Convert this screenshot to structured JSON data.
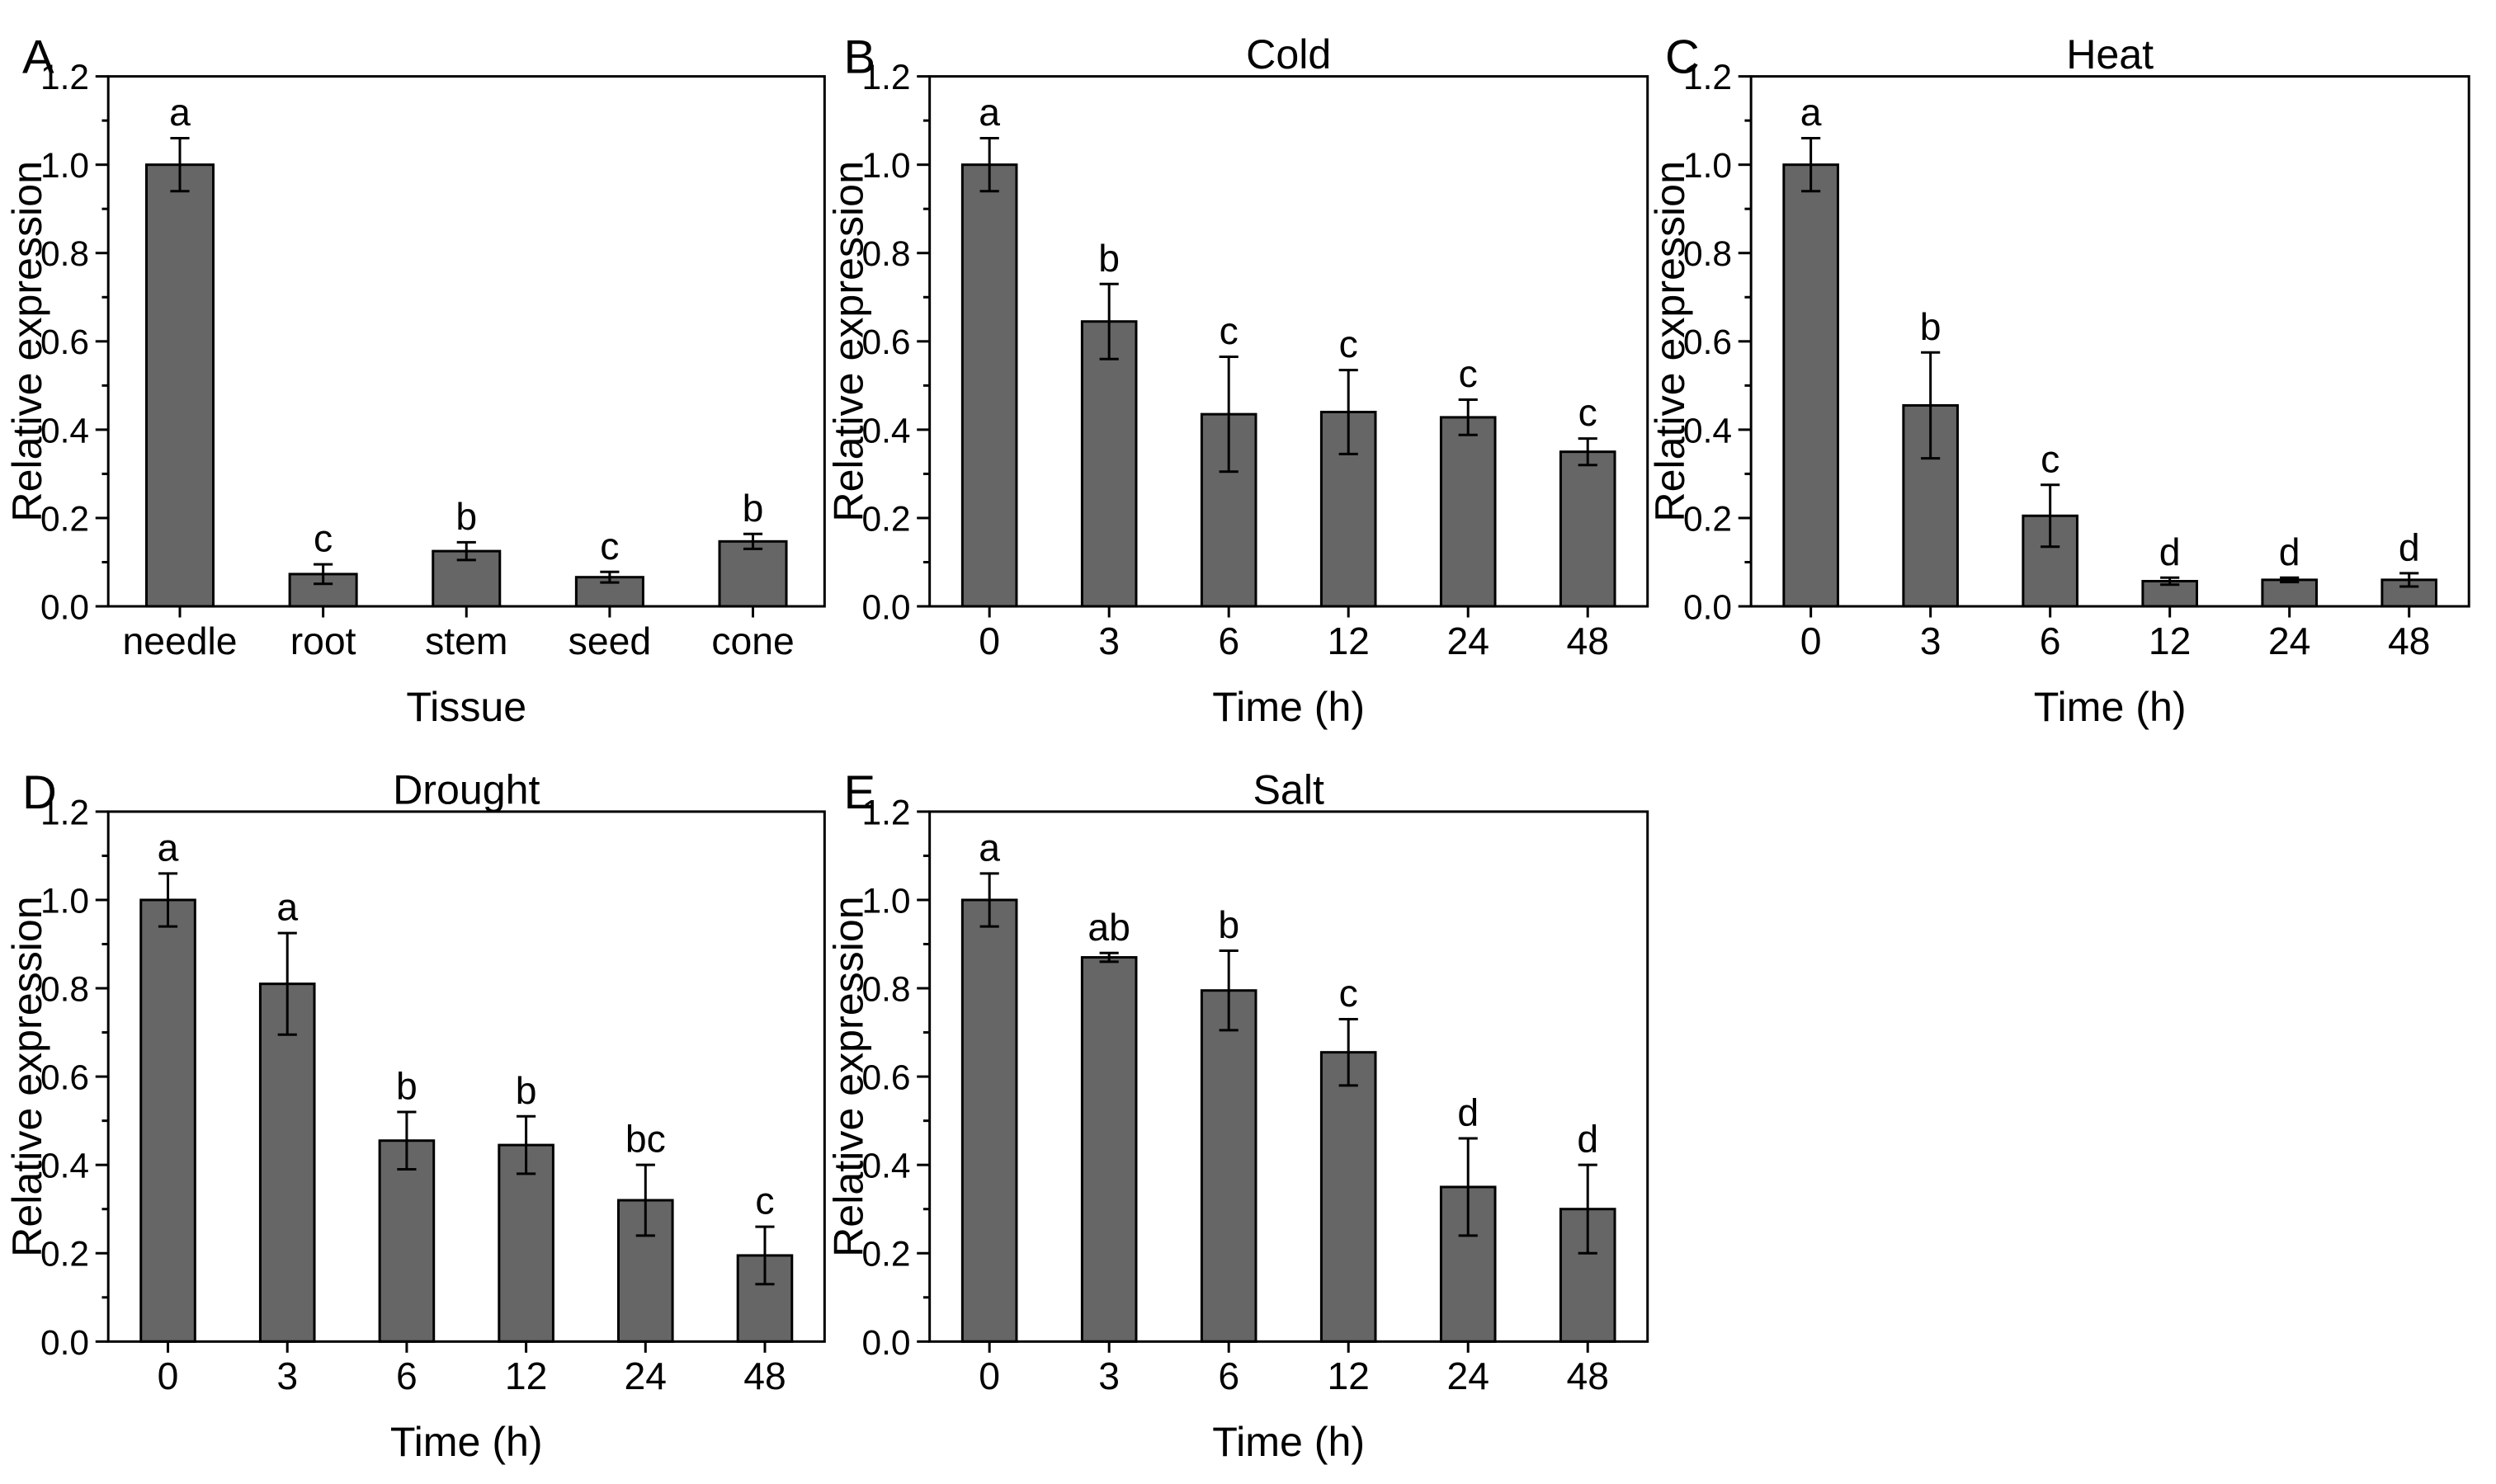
{
  "colors": {
    "bar_fill": "#666666",
    "axis": "#000000",
    "background": "#ffffff"
  },
  "chart_data": [
    {
      "panel": "A",
      "type": "bar",
      "title": "",
      "xlabel": "Tissue",
      "ylabel": "Relative expression",
      "ylim": [
        0,
        1.2
      ],
      "yticks": [
        0.0,
        0.2,
        0.4,
        0.6,
        0.8,
        1.0,
        1.2
      ],
      "ytick_labels": [
        "0.0",
        "0.2",
        "0.4",
        "0.6",
        "0.8",
        "1.0",
        "1.2"
      ],
      "categories": [
        "needle",
        "root",
        "stem",
        "seed",
        "cone"
      ],
      "values": [
        1.0,
        0.073,
        0.125,
        0.066,
        0.147
      ],
      "errors": [
        0.06,
        0.022,
        0.02,
        0.012,
        0.017
      ],
      "labels": [
        "a",
        "c",
        "b",
        "c",
        "b"
      ]
    },
    {
      "panel": "B",
      "type": "bar",
      "title": "Cold",
      "xlabel": "Time (h)",
      "ylabel": "Relative expression",
      "ylim": [
        0,
        1.2
      ],
      "yticks": [
        0.0,
        0.2,
        0.4,
        0.6,
        0.8,
        1.0,
        1.2
      ],
      "ytick_labels": [
        "0.0",
        "0.2",
        "0.4",
        "0.6",
        "0.8",
        "1.0",
        "1.2"
      ],
      "categories": [
        "0",
        "3",
        "6",
        "12",
        "24",
        "48"
      ],
      "values": [
        1.0,
        0.645,
        0.435,
        0.44,
        0.428,
        0.35
      ],
      "errors": [
        0.06,
        0.085,
        0.13,
        0.095,
        0.04,
        0.03
      ],
      "labels": [
        "a",
        "b",
        "c",
        "c",
        "c",
        "c"
      ]
    },
    {
      "panel": "C",
      "type": "bar",
      "title": "Heat",
      "xlabel": "Time (h)",
      "ylabel": "Relative expression",
      "ylim": [
        0,
        1.2
      ],
      "yticks": [
        0.0,
        0.2,
        0.4,
        0.6,
        0.8,
        1.0,
        1.2
      ],
      "ytick_labels": [
        "0.0",
        "0.2",
        "0.4",
        "0.6",
        "0.8",
        "1.0",
        "1.2"
      ],
      "categories": [
        "0",
        "3",
        "6",
        "12",
        "24",
        "48"
      ],
      "values": [
        1.0,
        0.455,
        0.205,
        0.057,
        0.06,
        0.06
      ],
      "errors": [
        0.06,
        0.12,
        0.07,
        0.008,
        0.005,
        0.015
      ],
      "labels": [
        "a",
        "b",
        "c",
        "d",
        "d",
        "d"
      ]
    },
    {
      "panel": "D",
      "type": "bar",
      "title": "Drought",
      "xlabel": "Time (h)",
      "ylabel": "Relative expression",
      "ylim": [
        0,
        1.2
      ],
      "yticks": [
        0.0,
        0.2,
        0.4,
        0.6,
        0.8,
        1.0,
        1.2
      ],
      "ytick_labels": [
        "0.0",
        "0.2",
        "0.4",
        "0.6",
        "0.8",
        "1.0",
        "1.2"
      ],
      "categories": [
        "0",
        "3",
        "6",
        "12",
        "24",
        "48"
      ],
      "values": [
        1.0,
        0.81,
        0.455,
        0.445,
        0.32,
        0.195
      ],
      "errors": [
        0.06,
        0.115,
        0.065,
        0.065,
        0.08,
        0.065
      ],
      "labels": [
        "a",
        "a",
        "b",
        "b",
        "bc",
        "c"
      ]
    },
    {
      "panel": "E",
      "type": "bar",
      "title": "Salt",
      "xlabel": "Time (h)",
      "ylabel": "Relative expression",
      "ylim": [
        0,
        1.2
      ],
      "yticks": [
        0.0,
        0.2,
        0.4,
        0.6,
        0.8,
        1.0,
        1.2
      ],
      "ytick_labels": [
        "0.0",
        "0.2",
        "0.4",
        "0.6",
        "0.8",
        "1.0",
        "1.2"
      ],
      "categories": [
        "0",
        "3",
        "6",
        "12",
        "24",
        "48"
      ],
      "values": [
        1.0,
        0.87,
        0.795,
        0.655,
        0.35,
        0.3
      ],
      "errors": [
        0.06,
        0.01,
        0.09,
        0.075,
        0.11,
        0.1
      ],
      "labels": [
        "a",
        "ab",
        "b",
        "c",
        "d",
        "d"
      ]
    }
  ]
}
